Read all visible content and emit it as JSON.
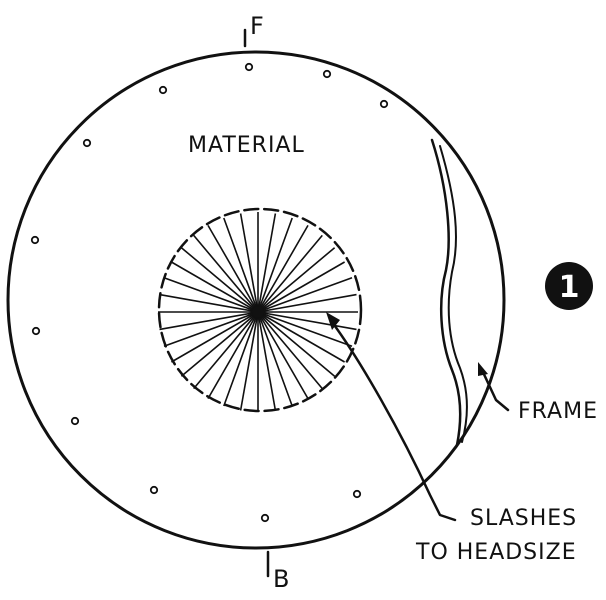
{
  "labels": {
    "front": "F",
    "back": "B",
    "material": "MATERIAL",
    "frame": "FRAME",
    "slashes_line1": "SLASHES",
    "slashes_line2": "TO HEADSIZE",
    "step_number": "1"
  },
  "colors": {
    "ink": "#111111",
    "paper": "#ffffff"
  }
}
